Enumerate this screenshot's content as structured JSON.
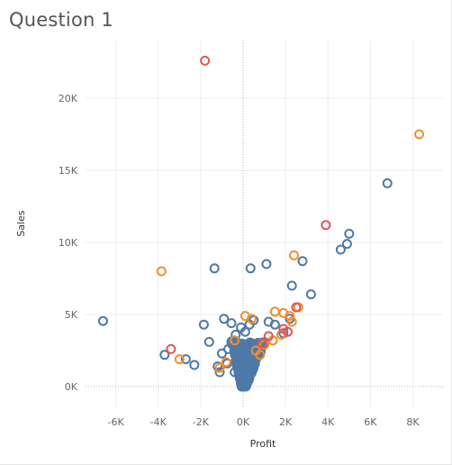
{
  "title": "Question 1",
  "chart_data": {
    "type": "scatter",
    "title": "Question 1",
    "xlabel": "Profit",
    "ylabel": "Sales",
    "xlim": [
      -7500,
      9200
    ],
    "ylim": [
      -1400,
      24000
    ],
    "x_ticks": [
      {
        "value": -6000,
        "label": "-6K"
      },
      {
        "value": -4000,
        "label": "-4K"
      },
      {
        "value": -2000,
        "label": "-2K"
      },
      {
        "value": 0,
        "label": "0K"
      },
      {
        "value": 2000,
        "label": "2K"
      },
      {
        "value": 4000,
        "label": "4K"
      },
      {
        "value": 6000,
        "label": "6K"
      },
      {
        "value": 8000,
        "label": "8K"
      }
    ],
    "y_ticks": [
      {
        "value": 0,
        "label": "0K"
      },
      {
        "value": 5000,
        "label": "5K"
      },
      {
        "value": 10000,
        "label": "10K"
      },
      {
        "value": 15000,
        "label": "15K"
      },
      {
        "value": 20000,
        "label": "20K"
      }
    ],
    "grid": true,
    "zero_lines": true,
    "marker": "hollow-circle",
    "colors": {
      "blue": "#4e79a7",
      "orange": "#f28e2b",
      "red": "#e15759",
      "grid": "#eeeeee",
      "zero": "#bbbbbb"
    },
    "series": [
      {
        "name": "blue",
        "color": "#4e79a7",
        "points": [
          [
            -6600,
            4550
          ],
          [
            -3700,
            2200
          ],
          [
            -2700,
            1900
          ],
          [
            -2300,
            1500
          ],
          [
            -1850,
            4300
          ],
          [
            -1600,
            3100
          ],
          [
            -1350,
            8200
          ],
          [
            -1200,
            1400
          ],
          [
            -1000,
            2300
          ],
          [
            -1100,
            1000
          ],
          [
            -900,
            4700
          ],
          [
            -750,
            1600
          ],
          [
            -700,
            2600
          ],
          [
            -550,
            4400
          ],
          [
            -350,
            3600
          ],
          [
            -300,
            1800
          ],
          [
            -250,
            1300
          ],
          [
            -100,
            4100
          ],
          [
            100,
            3800
          ],
          [
            200,
            2900
          ],
          [
            300,
            4300
          ],
          [
            350,
            8200
          ],
          [
            500,
            4600
          ],
          [
            1100,
            8500
          ],
          [
            1200,
            4500
          ],
          [
            1500,
            4300
          ],
          [
            1900,
            3700
          ],
          [
            2200,
            4700
          ],
          [
            2300,
            7000
          ],
          [
            2800,
            8700
          ],
          [
            3200,
            6400
          ],
          [
            4600,
            9500
          ],
          [
            4900,
            9900
          ],
          [
            5000,
            10600
          ],
          [
            6800,
            14100
          ],
          [
            -400,
            1000
          ],
          [
            -150,
            700
          ],
          [
            50,
            500
          ],
          [
            150,
            400
          ],
          [
            300,
            800
          ]
        ]
      },
      {
        "name": "orange",
        "color": "#f28e2b",
        "points": [
          [
            -3850,
            8000
          ],
          [
            -3000,
            1900
          ],
          [
            -1100,
            1300
          ],
          [
            -800,
            1700
          ],
          [
            -400,
            3200
          ],
          [
            100,
            4900
          ],
          [
            400,
            4700
          ],
          [
            1000,
            2900
          ],
          [
            1400,
            3200
          ],
          [
            1800,
            3600
          ],
          [
            1500,
            5200
          ],
          [
            1900,
            5100
          ],
          [
            2200,
            4900
          ],
          [
            2300,
            4500
          ],
          [
            2400,
            9100
          ],
          [
            2600,
            5500
          ],
          [
            8300,
            17500
          ],
          [
            600,
            2500
          ],
          [
            800,
            2200
          ]
        ]
      },
      {
        "name": "red",
        "color": "#e15759",
        "points": [
          [
            -1800,
            22600
          ],
          [
            -3400,
            2600
          ],
          [
            3900,
            11200
          ],
          [
            2500,
            5500
          ],
          [
            1900,
            4000
          ],
          [
            2100,
            3800
          ],
          [
            900,
            3000
          ],
          [
            1200,
            3500
          ]
        ]
      }
    ],
    "dense_cluster_note": "hundreds of overlapping points near origin"
  }
}
